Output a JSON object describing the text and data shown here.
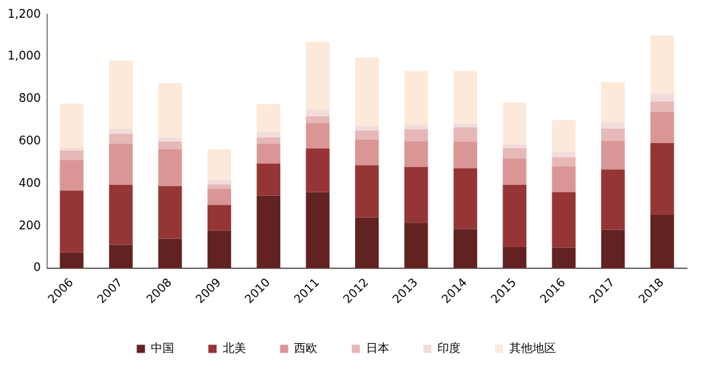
{
  "chart_data": {
    "type": "bar",
    "stacked": true,
    "categories": [
      "2006",
      "2007",
      "2008",
      "2009",
      "2010",
      "2011",
      "2012",
      "2013",
      "2014",
      "2015",
      "2016",
      "2017",
      "2018"
    ],
    "series": [
      {
        "name": "中国",
        "color": "#622222",
        "values": [
          75,
          112,
          141,
          179,
          345,
          361,
          240,
          216,
          185,
          100,
          99,
          182,
          252
        ]
      },
      {
        "name": "北美",
        "color": "#953535",
        "values": [
          293,
          283,
          248,
          121,
          151,
          206,
          248,
          264,
          288,
          295,
          262,
          286,
          340
        ]
      },
      {
        "name": "西欧",
        "color": "#d99694",
        "values": [
          143,
          194,
          174,
          76,
          94,
          121,
          122,
          121,
          126,
          125,
          122,
          135,
          148
        ]
      },
      {
        "name": "日本",
        "color": "#e6b8b7",
        "values": [
          46,
          48,
          36,
          21,
          28,
          31,
          42,
          57,
          68,
          49,
          43,
          58,
          49
        ]
      },
      {
        "name": "印度",
        "color": "#f2dcdb",
        "values": [
          13,
          23,
          21,
          21,
          27,
          32,
          23,
          21,
          18,
          18,
          25,
          31,
          39
        ]
      },
      {
        "name": "其他地区",
        "color": "#fde9d9",
        "values": [
          209,
          322,
          256,
          145,
          131,
          321,
          322,
          254,
          249,
          197,
          150,
          188,
          273
        ]
      }
    ],
    "ylim": [
      0,
      1200
    ],
    "yticks": [
      0,
      200,
      400,
      600,
      800,
      {
        "value": 1000,
        "label": "1,000"
      },
      {
        "value": 1200,
        "label": "1,200"
      }
    ],
    "grid": false,
    "legend": "bottom"
  }
}
